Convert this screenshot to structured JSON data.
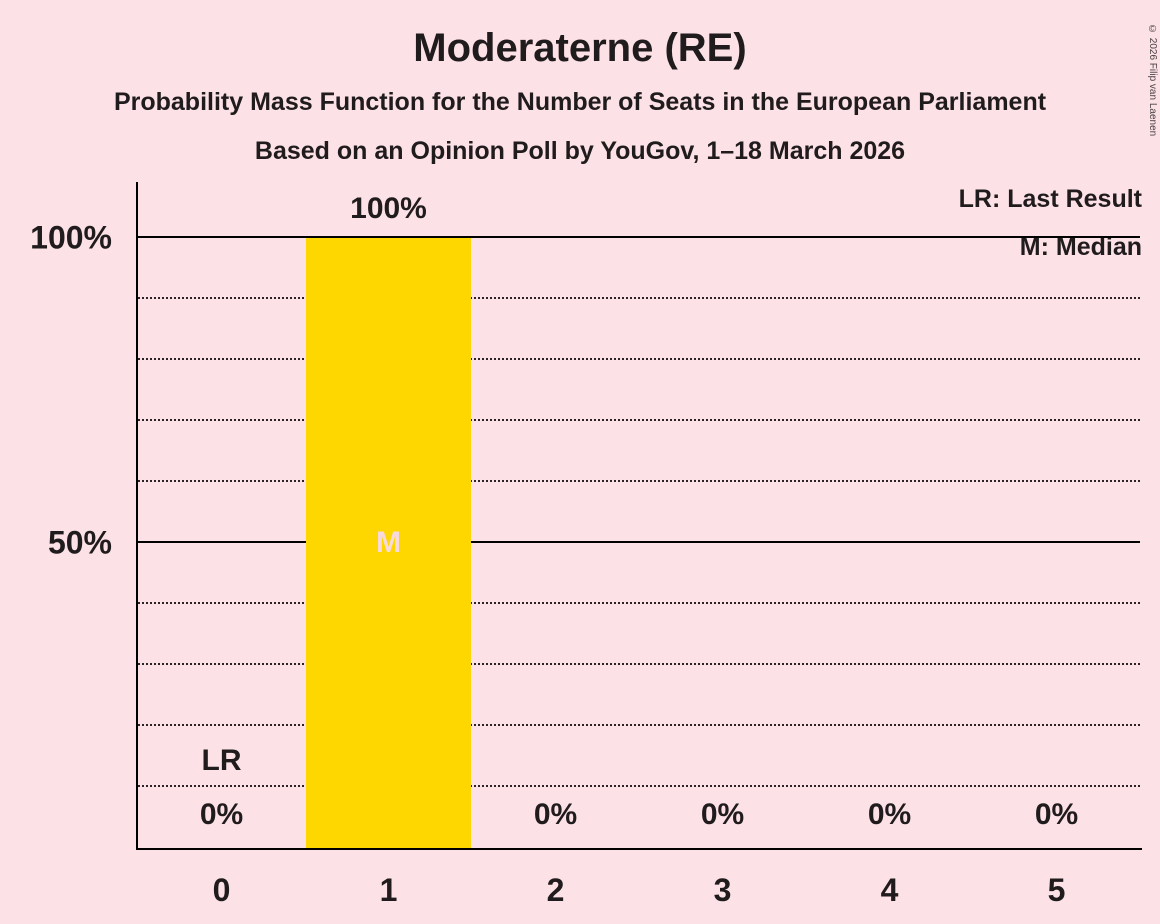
{
  "page": {
    "background_color": "#fce1e6",
    "text_color": "#201b1d"
  },
  "header": {
    "title": "Moderaterne (RE)",
    "subtitle": "Probability Mass Function for the Number of Seats in the European Parliament",
    "subsubtitle": "Based on an Opinion Poll by YouGov, 1–18 March 2026"
  },
  "legend": {
    "lr": "LR: Last Result",
    "m": "M: Median"
  },
  "copyright": "© 2026 Filip van Laenen",
  "chart_data": {
    "type": "bar",
    "title": "Moderaterne (RE)",
    "subtitle": "Probability Mass Function for the Number of Seats in the European Parliament",
    "poll_note": "Based on an Opinion Poll by YouGov, 1–18 March 2026",
    "xlabel": "Number of Seats in the European Parliament",
    "ylabel": "Probability",
    "categories": [
      "0",
      "1",
      "2",
      "3",
      "4",
      "5"
    ],
    "values": [
      0,
      100,
      0,
      0,
      0,
      0
    ],
    "value_labels": [
      "0%",
      "100%",
      "0%",
      "0%",
      "0%",
      "0%"
    ],
    "ylim": [
      0,
      100
    ],
    "yticks": [
      {
        "label": "100%",
        "value": 100
      },
      {
        "label": "50%",
        "value": 50
      }
    ],
    "solid_gridlines": [
      50,
      100
    ],
    "dotted_gridlines": [
      10,
      20,
      30,
      40,
      60,
      70,
      80,
      90
    ],
    "grid": true,
    "legend_position": "top-right",
    "legend_entries": [
      "LR: Last Result",
      "M: Median"
    ],
    "annotations": {
      "lr": {
        "label": "LR",
        "category_index": 0
      },
      "median": {
        "label": "M",
        "category_index": 1
      }
    },
    "bar_color": "#ffd700",
    "background_color": "#fce1e6"
  }
}
